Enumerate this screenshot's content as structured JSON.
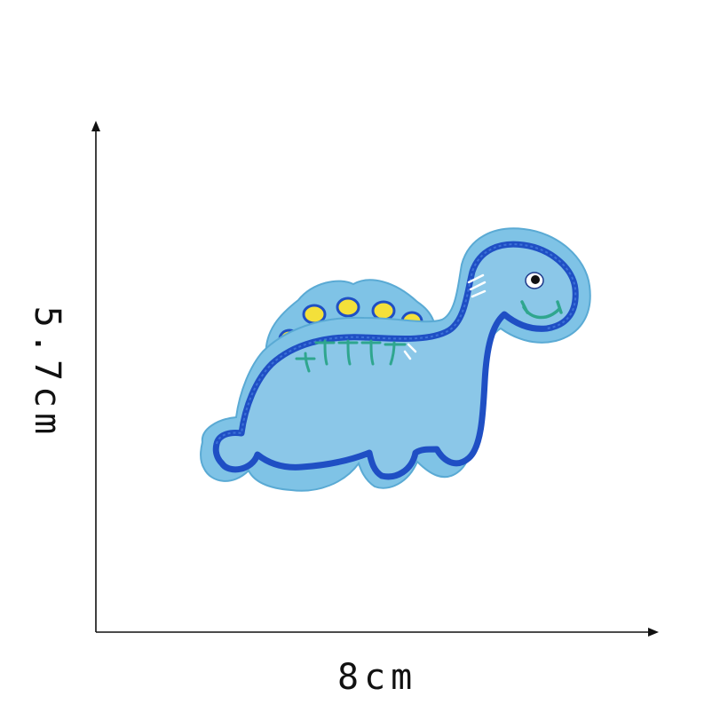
{
  "dimensions": {
    "width_label": "8cm",
    "height_label": "5.7cm"
  },
  "product": {
    "subject": "dinosaur-embroidered-patch",
    "colors": {
      "felt": "#7fc3e6",
      "outline": "#1f4fc4",
      "spikes": "#f4e03a",
      "belly_stitch": "#2fa68e",
      "background": "#ffffff",
      "axis": "#111111"
    }
  }
}
